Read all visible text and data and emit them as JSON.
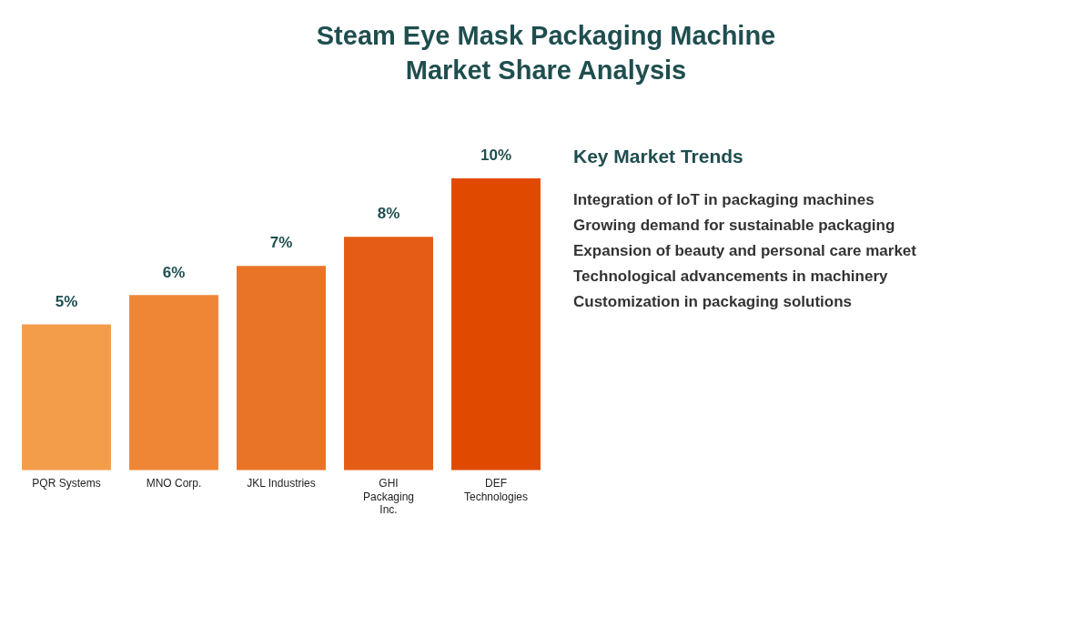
{
  "chart_data": [
    {
      "type": "bar",
      "title": "Steam Eye Mask Packaging Machine\nMarket Share Analysis",
      "categories": [
        "PQR Systems",
        "MNO Corp.",
        "JKL Industries",
        "GHI Packaging Inc.",
        "DEF Technologies"
      ],
      "values": [
        5,
        6,
        7,
        8,
        10
      ],
      "value_labels": [
        "5%",
        "6%",
        "7%",
        "8%",
        "10%"
      ],
      "colors": [
        "#f39c4a",
        "#ef8636",
        "#ea7426",
        "#e55c15",
        "#e04a00"
      ],
      "grid": false,
      "legend": false
    },
    {
      "type": "other",
      "title": "Key Market Trends",
      "annotations": [
        "Integration of IoT in packaging machines",
        "Growing demand for sustainable packaging",
        "Expansion of beauty and personal care market",
        "Technological advancements in machinery",
        "Customization in packaging solutions"
      ]
    }
  ]
}
